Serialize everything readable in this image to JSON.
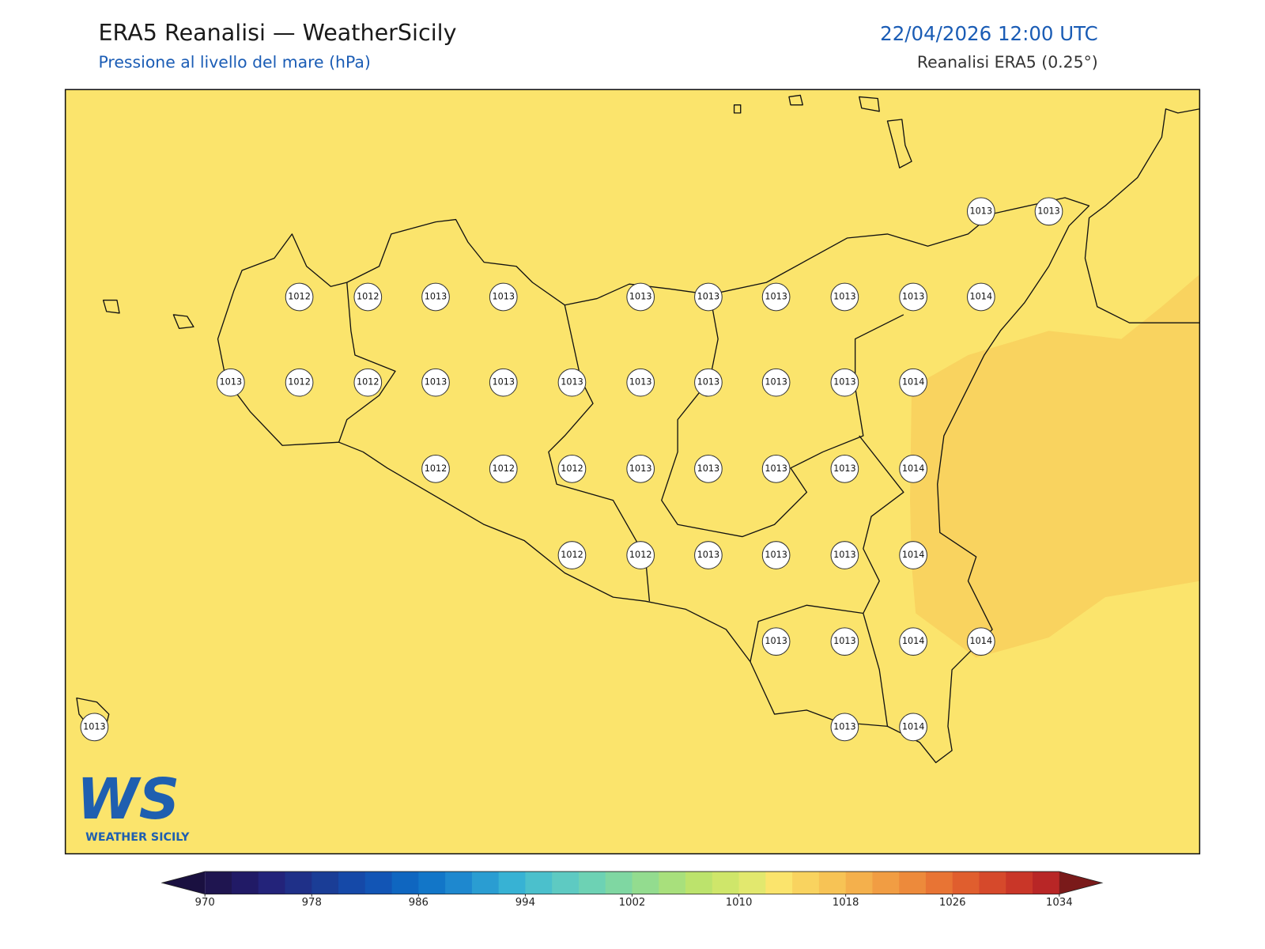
{
  "header": {
    "title": "ERA5 Reanalisi — WeatherSicily",
    "subtitle": "Pressione al livello del mare (hPa)",
    "datetime": "22/04/2026 12:00 UTC",
    "source": "Reanalisi ERA5 (0.25°)"
  },
  "stations": [
    1013,
    1013,
    1012,
    1012,
    1013,
    1013,
    1013,
    1013,
    1013,
    1013,
    1013,
    1014,
    1013,
    1012,
    1012,
    1013,
    1013,
    1013,
    1013,
    1013,
    1013,
    1013,
    1014,
    1012,
    1012,
    1012,
    1013,
    1013,
    1013,
    1013,
    1014,
    1012,
    1012,
    1013,
    1013,
    1013,
    1014,
    1013,
    1013,
    1014,
    1014,
    1013,
    1013,
    1014
  ],
  "colorbar": {
    "lim": [
      970,
      1034
    ],
    "ticks": [
      970,
      978,
      986,
      994,
      1002,
      1010,
      1018,
      1026,
      1034
    ],
    "colors": [
      "#1f1550",
      "#211a66",
      "#23237a",
      "#1f3088",
      "#1a3d96",
      "#1549a8",
      "#1255b5",
      "#0f66c0",
      "#1276c8",
      "#1e88cf",
      "#2a9dd2",
      "#37b2d4",
      "#4bc0cc",
      "#5ecac2",
      "#6dd2b4",
      "#7fd7a2",
      "#93dc8f",
      "#a8e07c",
      "#bce36c",
      "#cfe66a",
      "#e2e86e",
      "#fbe46c",
      "#f9d35f",
      "#f7c355",
      "#f4b04c",
      "#f19d43",
      "#ed8a3b",
      "#e87434",
      "#e05e2e",
      "#d6492b",
      "#c93628",
      "#b82626"
    ],
    "under_color": "#1a1040",
    "over_color": "#7a1a1a"
  },
  "logo": {
    "mark": "WS",
    "name": "WEATHER SICILY"
  }
}
